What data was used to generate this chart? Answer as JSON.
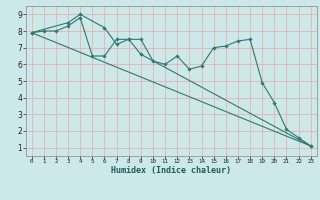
{
  "xlabel": "Humidex (Indice chaleur)",
  "bg_color": "#cce8e8",
  "line_color": "#2d7a70",
  "grid_color": "#e8b0b0",
  "xlim": [
    -0.5,
    23.5
  ],
  "ylim": [
    0.5,
    9.5
  ],
  "x_ticks": [
    0,
    1,
    2,
    3,
    4,
    5,
    6,
    7,
    8,
    9,
    10,
    11,
    12,
    13,
    14,
    15,
    16,
    17,
    18,
    19,
    20,
    21,
    22,
    23
  ],
  "y_ticks": [
    1,
    2,
    3,
    4,
    5,
    6,
    7,
    8,
    9
  ],
  "line1_x": [
    0,
    1,
    2,
    3,
    4,
    5,
    6,
    7,
    8,
    9,
    10,
    11,
    12,
    13,
    14,
    15,
    16,
    17,
    18,
    19,
    20,
    21,
    22,
    23
  ],
  "line1_y": [
    7.9,
    8.0,
    8.0,
    8.3,
    8.8,
    6.5,
    6.5,
    7.5,
    7.5,
    7.5,
    6.2,
    6.0,
    6.5,
    5.7,
    5.9,
    7.0,
    7.1,
    7.4,
    7.5,
    4.9,
    3.7,
    2.1,
    1.6,
    1.1
  ],
  "line2_x": [
    0,
    3,
    4,
    6,
    7,
    8,
    9,
    23
  ],
  "line2_y": [
    7.9,
    8.5,
    9.0,
    8.2,
    7.2,
    7.5,
    6.6,
    1.1
  ],
  "line3_x": [
    0,
    23
  ],
  "line3_y": [
    7.9,
    1.1
  ]
}
